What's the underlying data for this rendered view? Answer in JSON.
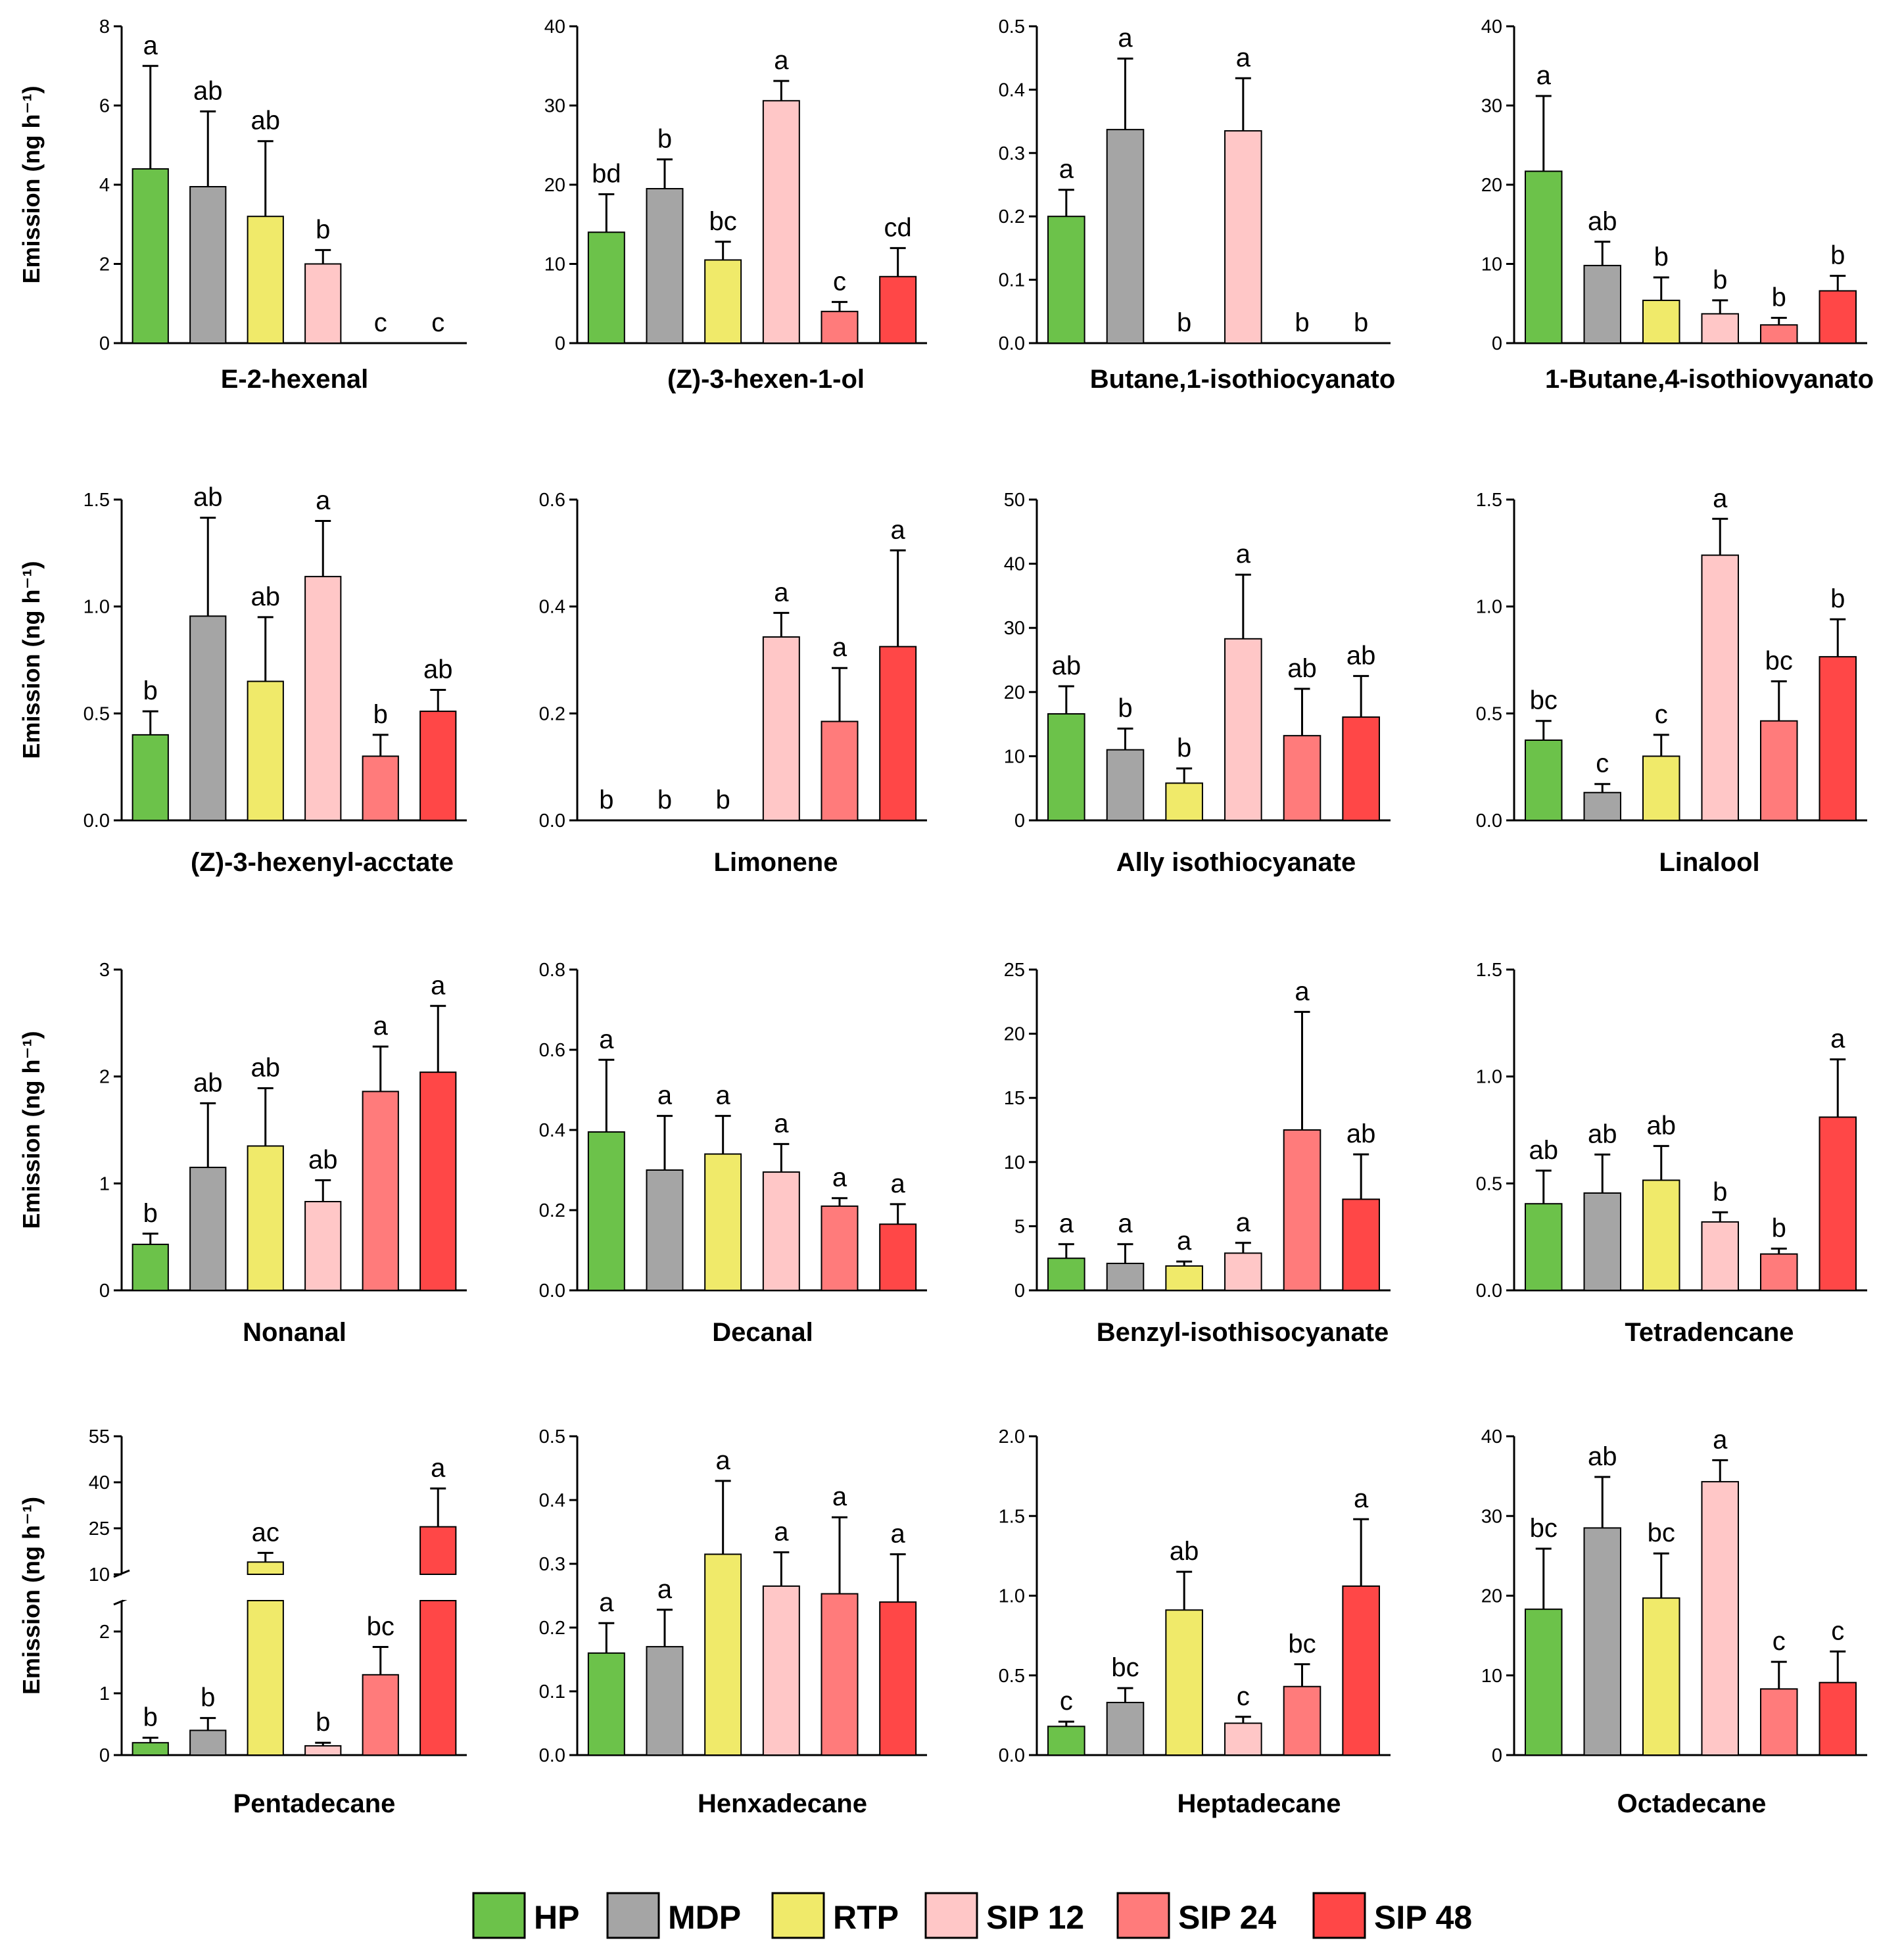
{
  "legend": [
    {
      "key": "HP",
      "label": "HP",
      "color": "#6cc24a"
    },
    {
      "key": "MDP",
      "label": "MDP",
      "color": "#a5a5a5"
    },
    {
      "key": "RTP",
      "label": "RTP",
      "color": "#f0ea6a"
    },
    {
      "key": "SIP12",
      "label": "SIP 12",
      "color": "#ffc7c7"
    },
    {
      "key": "SIP24",
      "label": "SIP 24",
      "color": "#ff7b7b"
    },
    {
      "key": "SIP48",
      "label": "SIP 48",
      "color": "#ff4747"
    }
  ],
  "ylabel": "Emission (ng h⁻¹)",
  "chart_data": [
    {
      "type": "bar",
      "title": "E-2-hexenal",
      "categories": [
        "HP",
        "MDP",
        "RTP",
        "SIP 12",
        "SIP 24",
        "SIP 48"
      ],
      "values": [
        4.4,
        3.95,
        3.2,
        2.0,
        0,
        0
      ],
      "errors": [
        2.6,
        1.9,
        1.9,
        0.35,
        0,
        0
      ],
      "letters": [
        "a",
        "ab",
        "ab",
        "b",
        "c",
        "c"
      ],
      "ylim": [
        0,
        8
      ],
      "yticks": [
        "0",
        "2",
        "4",
        "6",
        "8"
      ]
    },
    {
      "type": "bar",
      "title": "(Z)-3-hexen-1-ol",
      "categories": [
        "HP",
        "MDP",
        "RTP",
        "SIP 12",
        "SIP 24",
        "SIP 48"
      ],
      "values": [
        14,
        19.5,
        10.5,
        30.6,
        4,
        8.4
      ],
      "errors": [
        4.8,
        3.7,
        2.3,
        2.5,
        1.2,
        3.6
      ],
      "letters": [
        "bd",
        "b",
        "bc",
        "a",
        "c",
        "cd"
      ],
      "ylim": [
        0,
        40
      ],
      "yticks": [
        "0",
        "10",
        "20",
        "30",
        "40"
      ]
    },
    {
      "type": "bar",
      "title": "Butane,1-isothiocyanato",
      "categories": [
        "HP",
        "MDP",
        "RTP",
        "SIP 12",
        "SIP 24",
        "SIP 48"
      ],
      "values": [
        0.2,
        0.337,
        0,
        0.335,
        0,
        0
      ],
      "errors": [
        0.042,
        0.112,
        0,
        0.083,
        0,
        0
      ],
      "letters": [
        "a",
        "a",
        "b",
        "a",
        "b",
        "b"
      ],
      "ylim": [
        0,
        0.5
      ],
      "yticks": [
        "0.0",
        "0.1",
        "0.2",
        "0.3",
        "0.4",
        "0.5"
      ]
    },
    {
      "type": "bar",
      "title": "1-Butane,4-isothiovyanato",
      "categories": [
        "HP",
        "MDP",
        "RTP",
        "SIP 12",
        "SIP 24",
        "SIP 48"
      ],
      "values": [
        21.7,
        9.8,
        5.4,
        3.7,
        2.3,
        6.6
      ],
      "errors": [
        9.5,
        3.0,
        2.9,
        1.7,
        0.9,
        1.9
      ],
      "letters": [
        "a",
        "ab",
        "b",
        "b",
        "b",
        "b"
      ],
      "ylim": [
        0,
        40
      ],
      "yticks": [
        "0",
        "10",
        "20",
        "30",
        "40"
      ]
    },
    {
      "type": "bar",
      "title": "(Z)-3-hexenyl-acctate",
      "categories": [
        "HP",
        "MDP",
        "RTP",
        "SIP 12",
        "SIP 24",
        "SIP 48"
      ],
      "values": [
        0.4,
        0.955,
        0.65,
        1.14,
        0.3,
        0.51
      ],
      "errors": [
        0.11,
        0.46,
        0.3,
        0.26,
        0.1,
        0.1
      ],
      "letters": [
        "b",
        "ab",
        "ab",
        "a",
        "b",
        "ab"
      ],
      "ylim": [
        0,
        1.5
      ],
      "yticks": [
        "0.0",
        "0.5",
        "1.0",
        "1.5"
      ]
    },
    {
      "type": "bar",
      "title": "Limonene",
      "categories": [
        "HP",
        "MDP",
        "RTP",
        "SIP 12",
        "SIP 24",
        "SIP 48"
      ],
      "values": [
        0,
        0,
        0,
        0.343,
        0.185,
        0.325
      ],
      "errors": [
        0,
        0,
        0,
        0.045,
        0.1,
        0.18
      ],
      "letters": [
        "b",
        "b",
        "b",
        "a",
        "a",
        "a"
      ],
      "ylim": [
        0,
        0.6
      ],
      "yticks": [
        "0.0",
        "0.2",
        "0.4",
        "0.6"
      ]
    },
    {
      "type": "bar",
      "title": "Ally isothiocyanate",
      "categories": [
        "HP",
        "MDP",
        "RTP",
        "SIP 12",
        "SIP 24",
        "SIP 48"
      ],
      "values": [
        16.6,
        11.0,
        5.8,
        28.3,
        13.2,
        16.1
      ],
      "errors": [
        4.3,
        3.3,
        2.3,
        10.0,
        7.3,
        6.4
      ],
      "letters": [
        "ab",
        "b",
        "b",
        "a",
        "ab",
        "ab"
      ],
      "ylim": [
        0,
        50
      ],
      "yticks": [
        "0",
        "10",
        "20",
        "30",
        "40",
        "50"
      ]
    },
    {
      "type": "bar",
      "title": "Linalool",
      "categories": [
        "HP",
        "MDP",
        "RTP",
        "SIP 12",
        "SIP 24",
        "SIP 48"
      ],
      "values": [
        0.375,
        0.13,
        0.3,
        1.24,
        0.465,
        0.765
      ],
      "errors": [
        0.09,
        0.04,
        0.1,
        0.17,
        0.185,
        0.175
      ],
      "letters": [
        "bc",
        "c",
        "c",
        "a",
        "bc",
        "b"
      ],
      "ylim": [
        0,
        1.5
      ],
      "yticks": [
        "0.0",
        "0.5",
        "1.0",
        "1.5"
      ]
    },
    {
      "type": "bar",
      "title": "Nonanal",
      "categories": [
        "HP",
        "MDP",
        "RTP",
        "SIP 12",
        "SIP 24",
        "SIP 48"
      ],
      "values": [
        0.43,
        1.15,
        1.35,
        0.83,
        1.86,
        2.04
      ],
      "errors": [
        0.1,
        0.6,
        0.54,
        0.2,
        0.42,
        0.62
      ],
      "letters": [
        "b",
        "ab",
        "ab",
        "ab",
        "a",
        "a"
      ],
      "ylim": [
        0,
        3
      ],
      "yticks": [
        "0",
        "1",
        "2",
        "3"
      ]
    },
    {
      "type": "bar",
      "title": "Decanal",
      "categories": [
        "HP",
        "MDP",
        "RTP",
        "SIP 12",
        "SIP 24",
        "SIP 48"
      ],
      "values": [
        0.395,
        0.3,
        0.34,
        0.295,
        0.21,
        0.165
      ],
      "errors": [
        0.18,
        0.135,
        0.095,
        0.07,
        0.02,
        0.05
      ],
      "letters": [
        "a",
        "a",
        "a",
        "a",
        "a",
        "a"
      ],
      "ylim": [
        0,
        0.8
      ],
      "yticks": [
        "0.0",
        "0.2",
        "0.4",
        "0.6",
        "0.8"
      ]
    },
    {
      "type": "bar",
      "title": "Benzyl-isothisocyanate",
      "categories": [
        "HP",
        "MDP",
        "RTP",
        "SIP 12",
        "SIP 24",
        "SIP 48"
      ],
      "values": [
        2.5,
        2.1,
        1.9,
        2.9,
        12.5,
        7.1
      ],
      "errors": [
        1.1,
        1.5,
        0.35,
        0.8,
        9.2,
        3.5
      ],
      "letters": [
        "a",
        "a",
        "a",
        "a",
        "a",
        "ab"
      ],
      "ylim": [
        0,
        25
      ],
      "yticks": [
        "0",
        "5",
        "10",
        "15",
        "20",
        "25"
      ]
    },
    {
      "type": "bar",
      "title": "Tetradencane",
      "categories": [
        "HP",
        "MDP",
        "RTP",
        "SIP 12",
        "SIP 24",
        "SIP 48"
      ],
      "values": [
        0.405,
        0.455,
        0.515,
        0.32,
        0.17,
        0.81
      ],
      "errors": [
        0.155,
        0.18,
        0.16,
        0.045,
        0.025,
        0.27
      ],
      "letters": [
        "ab",
        "ab",
        "ab",
        "b",
        "b",
        "a"
      ],
      "ylim": [
        0,
        1.5
      ],
      "yticks": [
        "0.0",
        "0.5",
        "1.0",
        "1.5"
      ]
    },
    {
      "type": "bar",
      "title": "Pentadecane",
      "categories": [
        "HP",
        "MDP",
        "RTP",
        "SIP 12",
        "SIP 24",
        "SIP 48"
      ],
      "values": [
        0.2,
        0.4,
        14.0,
        0.15,
        1.3,
        25.5
      ],
      "errors": [
        0.08,
        0.2,
        3.0,
        0.05,
        0.45,
        12.5
      ],
      "letters": [
        "b",
        "b",
        "ac",
        "b",
        "bc",
        "a"
      ],
      "broken_axis": true,
      "lower_ylim": [
        0,
        2.5
      ],
      "upper_ylim": [
        10,
        55
      ],
      "yticks_lower": [
        "0",
        "1",
        "2"
      ],
      "yticks_upper": [
        "10",
        "25",
        "40",
        "55"
      ]
    },
    {
      "type": "bar",
      "title": "Henxadecane",
      "categories": [
        "HP",
        "MDP",
        "RTP",
        "SIP 12",
        "SIP 24",
        "SIP 48"
      ],
      "values": [
        0.16,
        0.17,
        0.315,
        0.265,
        0.253,
        0.24
      ],
      "errors": [
        0.047,
        0.058,
        0.115,
        0.053,
        0.12,
        0.075
      ],
      "letters": [
        "a",
        "a",
        "a",
        "a",
        "a",
        "a"
      ],
      "ylim": [
        0,
        0.5
      ],
      "yticks": [
        "0.0",
        "0.1",
        "0.2",
        "0.3",
        "0.4",
        "0.5"
      ]
    },
    {
      "type": "bar",
      "title": "Heptadecane",
      "categories": [
        "HP",
        "MDP",
        "RTP",
        "SIP 12",
        "SIP 24",
        "SIP 48"
      ],
      "values": [
        0.18,
        0.33,
        0.91,
        0.2,
        0.43,
        1.06
      ],
      "errors": [
        0.03,
        0.09,
        0.24,
        0.04,
        0.14,
        0.42
      ],
      "letters": [
        "c",
        "bc",
        "ab",
        "c",
        "bc",
        "a"
      ],
      "ylim": [
        0,
        2.0
      ],
      "yticks": [
        "0.0",
        "0.5",
        "1.0",
        "1.5",
        "2.0"
      ]
    },
    {
      "type": "bar",
      "title": "Octadecane",
      "categories": [
        "HP",
        "MDP",
        "RTP",
        "SIP 12",
        "SIP 24",
        "SIP 48"
      ],
      "values": [
        18.3,
        28.5,
        19.7,
        34.3,
        8.3,
        9.1
      ],
      "errors": [
        7.6,
        6.4,
        5.6,
        2.7,
        3.4,
        3.9
      ],
      "letters": [
        "bc",
        "ab",
        "bc",
        "a",
        "c",
        "c"
      ],
      "ylim": [
        0,
        40
      ],
      "yticks": [
        "0",
        "10",
        "20",
        "30",
        "40"
      ]
    }
  ]
}
